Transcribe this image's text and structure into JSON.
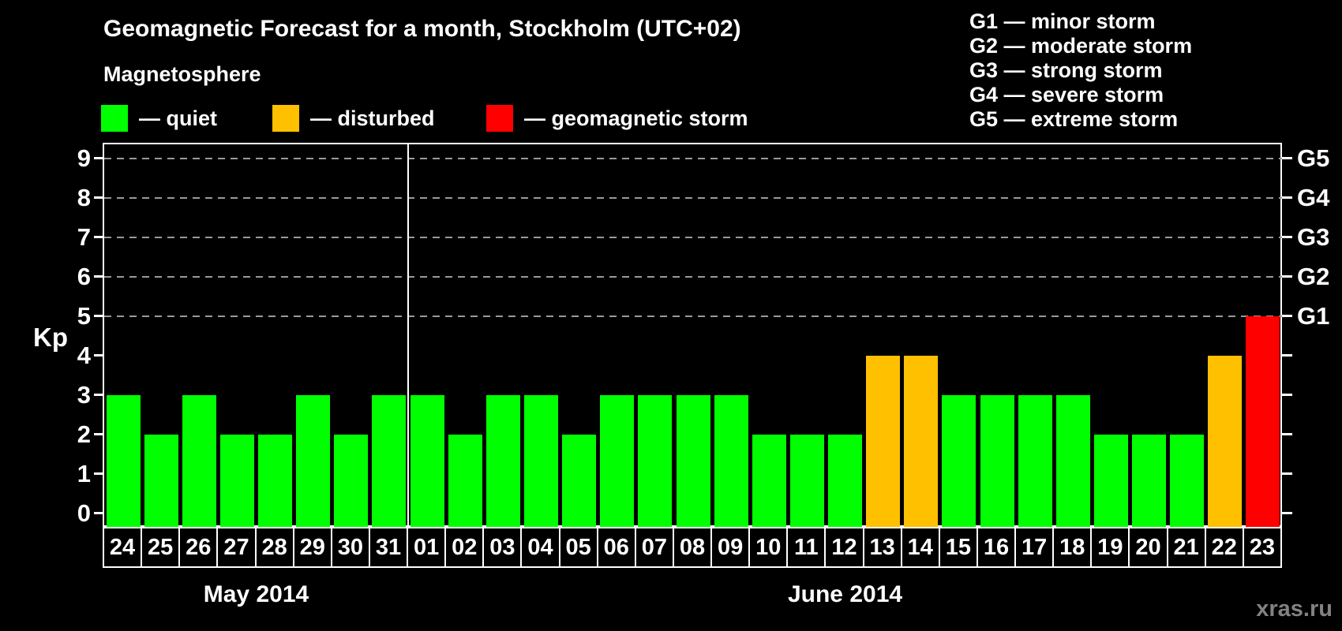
{
  "title": "Geomagnetic Forecast for a month, Stockholm (UTC+02)",
  "subtitle": "Magnetosphere",
  "legend": {
    "items": [
      {
        "key": "quiet",
        "label": "— quiet",
        "color": "#00ff00"
      },
      {
        "key": "disturbed",
        "label": "— disturbed",
        "color": "#ffc000"
      },
      {
        "key": "storm",
        "label": "— geomagnetic storm",
        "color": "#ff0000"
      }
    ]
  },
  "g_legend": [
    "G1 — minor storm",
    "G2 — moderate storm",
    "G3 — strong storm",
    "G4 — severe storm",
    "G5 — extreme storm"
  ],
  "watermark": "xras.ru",
  "chart_data": {
    "type": "bar",
    "title": "Geomagnetic Forecast for a month, Stockholm (UTC+02)",
    "ylabel": "Kp",
    "ylim": [
      -0.35,
      9.35
    ],
    "y_ticks": [
      0,
      1,
      2,
      3,
      4,
      5,
      6,
      7,
      8,
      9
    ],
    "gridlines_at": [
      5,
      6,
      7,
      8,
      9
    ],
    "grid": "dashed-horizontal",
    "legend_position": "top-left",
    "right_axis": [
      {
        "kp": 5,
        "label": "G1"
      },
      {
        "kp": 6,
        "label": "G2"
      },
      {
        "kp": 7,
        "label": "G3"
      },
      {
        "kp": 8,
        "label": "G4"
      },
      {
        "kp": 9,
        "label": "G5"
      }
    ],
    "status_colors": {
      "quiet": "#00ff00",
      "disturbed": "#ffc000",
      "storm": "#ff0000"
    },
    "months": [
      {
        "label": "May 2014",
        "days": [
          "24",
          "25",
          "26",
          "27",
          "28",
          "29",
          "30",
          "31"
        ],
        "kp": [
          3,
          2,
          3,
          2,
          2,
          3,
          2,
          3
        ],
        "status": [
          "quiet",
          "quiet",
          "quiet",
          "quiet",
          "quiet",
          "quiet",
          "quiet",
          "quiet"
        ]
      },
      {
        "label": "June 2014",
        "days": [
          "01",
          "02",
          "03",
          "04",
          "05",
          "06",
          "07",
          "08",
          "09",
          "10",
          "11",
          "12",
          "13",
          "14",
          "15",
          "16",
          "17",
          "18",
          "19",
          "20",
          "21",
          "22",
          "23"
        ],
        "kp": [
          3,
          2,
          3,
          3,
          2,
          3,
          3,
          3,
          3,
          2,
          2,
          2,
          4,
          4,
          3,
          3,
          3,
          3,
          2,
          2,
          2,
          4,
          5
        ],
        "status": [
          "quiet",
          "quiet",
          "quiet",
          "quiet",
          "quiet",
          "quiet",
          "quiet",
          "quiet",
          "quiet",
          "quiet",
          "quiet",
          "quiet",
          "disturbed",
          "disturbed",
          "quiet",
          "quiet",
          "quiet",
          "quiet",
          "quiet",
          "quiet",
          "quiet",
          "disturbed",
          "storm"
        ]
      }
    ]
  }
}
